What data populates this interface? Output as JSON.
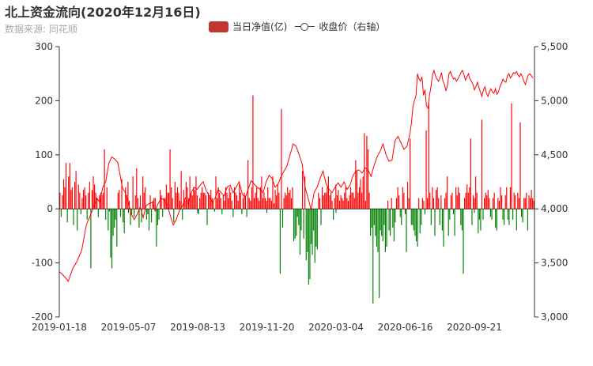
{
  "header": {
    "title": "北上资金流向(2020年12月16日)",
    "subtitle": "数据来源: 同花顺"
  },
  "chart_data": {
    "type": "bar",
    "title": "北上资金流向(2020年12月16日)",
    "subtitle": "数据来源: 同花顺",
    "legend": {
      "placement": "top-center",
      "entries": [
        "当日净值(亿)",
        "收盘价（右轴）"
      ]
    },
    "x_ticks": [
      "2019-01-18",
      "2019-05-07",
      "2019-08-13",
      "2019-11-20",
      "2020-03-04",
      "2020-06-16",
      "2020-09-21"
    ],
    "y_left": {
      "min": -200,
      "max": 300,
      "ticks": [
        "-200",
        "-100",
        "0",
        "100",
        "200",
        "300"
      ]
    },
    "y_right": {
      "min": 3000,
      "max": 5500,
      "ticks": [
        "3,000",
        "3,500",
        "4,000",
        "4,500",
        "5,000",
        "5,500"
      ]
    },
    "grid": false,
    "colors": {
      "positive": "#ff0000",
      "negative": "#008000",
      "close_line": "#ff0000",
      "legend_bar": "#c23531",
      "legend_line": "#2f4554"
    },
    "series": [
      {
        "name": "当日净值(亿)",
        "type": "bar",
        "axis": "left",
        "values": [
          30,
          -15,
          25,
          55,
          40,
          85,
          -25,
          60,
          85,
          35,
          40,
          -30,
          50,
          70,
          -40,
          45,
          30,
          -10,
          20,
          35,
          40,
          25,
          -20,
          30,
          50,
          -110,
          35,
          60,
          45,
          30,
          20,
          -15,
          25,
          30,
          25,
          30,
          110,
          -20,
          40,
          -40,
          -5,
          -90,
          -110,
          -50,
          -35,
          -20,
          -70,
          30,
          35,
          -15,
          55,
          -25,
          -45,
          40,
          25,
          50,
          15,
          -30,
          -10,
          60,
          -15,
          25,
          75,
          20,
          -35,
          25,
          -25,
          60,
          30,
          40,
          -20,
          -10,
          -40,
          25,
          -25,
          15,
          20,
          20,
          -70,
          -30,
          -20,
          35,
          25,
          -15,
          20,
          20,
          45,
          30,
          30,
          110,
          40,
          20,
          -25,
          50,
          30,
          40,
          30,
          15,
          70,
          -20,
          35,
          15,
          50,
          40,
          20,
          60,
          30,
          25,
          40,
          35,
          60,
          25,
          -10,
          20,
          30,
          40,
          30,
          30,
          25,
          -30,
          30,
          25,
          35,
          20,
          15,
          -5,
          60,
          20,
          40,
          30,
          20,
          -10,
          25,
          15,
          40,
          30,
          20,
          40,
          30,
          15,
          -15,
          40,
          30,
          25,
          15,
          45,
          30,
          -10,
          20,
          30,
          25,
          -15,
          90,
          20,
          15,
          40,
          210,
          20,
          30,
          40,
          20,
          15,
          40,
          60,
          20,
          30,
          20,
          15,
          40,
          20,
          20,
          15,
          60,
          10,
          35,
          25,
          45,
          30,
          -120,
          185,
          -35,
          20,
          30,
          25,
          40,
          30,
          35,
          20,
          40,
          -60,
          -55,
          -50,
          -15,
          -30,
          -85,
          -40,
          70,
          -55,
          60,
          -95,
          -80,
          -140,
          -130,
          -65,
          -85,
          -40,
          -100,
          -70,
          -75,
          30,
          20,
          -30,
          40,
          25,
          30,
          30,
          40,
          60,
          25,
          30,
          15,
          -20,
          20,
          45,
          25,
          35,
          15,
          25,
          20,
          15,
          30,
          40,
          20,
          15,
          25,
          40,
          30,
          30,
          20,
          90,
          70,
          30,
          40,
          55,
          30,
          60,
          140,
          15,
          135,
          110,
          30,
          -50,
          -35,
          -175,
          -30,
          -50,
          -70,
          -80,
          -165,
          -40,
          -50,
          -60,
          -30,
          -80,
          -70,
          15,
          -40,
          -50,
          20,
          -35,
          -60,
          -25,
          20,
          40,
          25,
          -15,
          -30,
          40,
          30,
          -10,
          -80,
          50,
          20,
          130,
          -30,
          -30,
          -40,
          -50,
          -60,
          -70,
          20,
          -45,
          -30,
          20,
          15,
          -10,
          145,
          20,
          195,
          30,
          -30,
          40,
          20,
          -50,
          35,
          40,
          20,
          -30,
          25,
          -40,
          -70,
          20,
          30,
          60,
          -50,
          -20,
          25,
          30,
          -10,
          -50,
          40,
          25,
          40,
          30,
          -30,
          -40,
          -120,
          20,
          30,
          45,
          30,
          40,
          130,
          -30,
          25,
          20,
          60,
          30,
          -45,
          -20,
          -40,
          165,
          -20,
          20,
          30,
          25,
          35,
          20,
          -15,
          -20,
          20,
          30,
          -35,
          -40,
          20,
          15,
          40,
          25,
          -20,
          -30,
          25,
          40,
          -20,
          -30,
          40,
          195,
          -20,
          30,
          25,
          -40,
          30,
          20,
          160,
          -15,
          -25,
          20,
          20,
          30,
          -40,
          25,
          20,
          35,
          20,
          15
        ]
      },
      {
        "name": "收盘价（右轴）",
        "type": "line",
        "axis": "right",
        "points": [
          [
            0,
            3420
          ],
          [
            6,
            3380
          ],
          [
            12,
            3330
          ],
          [
            18,
            3450
          ],
          [
            24,
            3520
          ],
          [
            30,
            3620
          ],
          [
            36,
            3850
          ],
          [
            42,
            3950
          ],
          [
            46,
            4020
          ],
          [
            50,
            4100
          ],
          [
            54,
            4060
          ],
          [
            58,
            4200
          ],
          [
            62,
            4250
          ],
          [
            66,
            4420
          ],
          [
            70,
            4480
          ],
          [
            74,
            4460
          ],
          [
            78,
            4430
          ],
          [
            82,
            4280
          ],
          [
            84,
            4200
          ],
          [
            88,
            4150
          ],
          [
            92,
            4060
          ],
          [
            96,
            3950
          ],
          [
            100,
            3900
          ],
          [
            104,
            3950
          ],
          [
            108,
            4020
          ],
          [
            112,
            3920
          ],
          [
            116,
            4030
          ],
          [
            120,
            4050
          ],
          [
            124,
            4060
          ],
          [
            128,
            3980
          ],
          [
            132,
            4050
          ],
          [
            136,
            4100
          ],
          [
            140,
            4080
          ],
          [
            144,
            4040
          ],
          [
            148,
            3940
          ],
          [
            152,
            3850
          ],
          [
            156,
            3900
          ],
          [
            160,
            3980
          ],
          [
            164,
            4020
          ],
          [
            168,
            4100
          ],
          [
            172,
            4050
          ],
          [
            176,
            4150
          ],
          [
            180,
            4200
          ],
          [
            184,
            4180
          ],
          [
            188,
            4220
          ],
          [
            192,
            4250
          ],
          [
            196,
            4170
          ],
          [
            200,
            4120
          ],
          [
            204,
            4060
          ],
          [
            208,
            4100
          ],
          [
            212,
            4180
          ],
          [
            216,
            4150
          ],
          [
            220,
            4120
          ],
          [
            224,
            4200
          ],
          [
            228,
            4220
          ],
          [
            232,
            4150
          ],
          [
            236,
            4200
          ],
          [
            240,
            4250
          ],
          [
            244,
            4140
          ],
          [
            248,
            4100
          ],
          [
            252,
            4180
          ],
          [
            256,
            4260
          ],
          [
            260,
            4230
          ],
          [
            264,
            4200
          ],
          [
            268,
            4180
          ],
          [
            272,
            4150
          ],
          [
            276,
            4250
          ],
          [
            280,
            4310
          ],
          [
            284,
            4280
          ],
          [
            288,
            4200
          ],
          [
            292,
            4230
          ],
          [
            296,
            4300
          ],
          [
            300,
            4350
          ],
          [
            304,
            4400
          ],
          [
            308,
            4500
          ],
          [
            312,
            4600
          ],
          [
            316,
            4580
          ],
          [
            320,
            4500
          ],
          [
            324,
            4420
          ],
          [
            328,
            4200
          ],
          [
            332,
            4100
          ],
          [
            336,
            3990
          ],
          [
            340,
            4150
          ],
          [
            344,
            4200
          ],
          [
            348,
            4280
          ],
          [
            352,
            4350
          ],
          [
            356,
            4230
          ],
          [
            360,
            4180
          ],
          [
            364,
            4150
          ],
          [
            368,
            4200
          ],
          [
            372,
            4240
          ],
          [
            376,
            4200
          ],
          [
            380,
            4250
          ],
          [
            384,
            4180
          ],
          [
            388,
            4220
          ],
          [
            392,
            4310
          ],
          [
            396,
            4350
          ],
          [
            400,
            4360
          ],
          [
            404,
            4330
          ],
          [
            408,
            4380
          ],
          [
            412,
            4360
          ],
          [
            416,
            4300
          ],
          [
            420,
            4400
          ],
          [
            424,
            4480
          ],
          [
            428,
            4530
          ],
          [
            432,
            4600
          ],
          [
            436,
            4500
          ],
          [
            440,
            4440
          ],
          [
            444,
            4450
          ],
          [
            448,
            4630
          ],
          [
            452,
            4670
          ],
          [
            456,
            4610
          ],
          [
            460,
            4550
          ],
          [
            464,
            4580
          ],
          [
            468,
            4700
          ],
          [
            470,
            4800
          ],
          [
            472,
            4950
          ],
          [
            474,
            5000
          ],
          [
            476,
            5050
          ],
          [
            478,
            5250
          ],
          [
            480,
            5200
          ],
          [
            482,
            5180
          ],
          [
            484,
            5220
          ],
          [
            486,
            5050
          ],
          [
            488,
            5100
          ],
          [
            490,
            4950
          ],
          [
            492,
            4930
          ],
          [
            494,
            5050
          ],
          [
            496,
            5130
          ],
          [
            498,
            5240
          ],
          [
            500,
            5280
          ],
          [
            502,
            5230
          ],
          [
            504,
            5200
          ],
          [
            506,
            5180
          ],
          [
            508,
            5210
          ],
          [
            510,
            5260
          ],
          [
            512,
            5180
          ],
          [
            514,
            5150
          ],
          [
            516,
            5090
          ],
          [
            518,
            5140
          ],
          [
            520,
            5250
          ],
          [
            522,
            5270
          ],
          [
            524,
            5230
          ],
          [
            526,
            5200
          ],
          [
            528,
            5210
          ],
          [
            530,
            5180
          ],
          [
            532,
            5200
          ],
          [
            534,
            5230
          ],
          [
            536,
            5260
          ],
          [
            538,
            5280
          ],
          [
            540,
            5240
          ],
          [
            542,
            5190
          ],
          [
            544,
            5220
          ],
          [
            546,
            5250
          ],
          [
            548,
            5200
          ],
          [
            550,
            5180
          ],
          [
            552,
            5150
          ],
          [
            554,
            5100
          ],
          [
            556,
            5130
          ],
          [
            558,
            5170
          ],
          [
            560,
            5120
          ],
          [
            562,
            5080
          ],
          [
            564,
            5040
          ],
          [
            566,
            5100
          ],
          [
            568,
            5130
          ],
          [
            570,
            5070
          ],
          [
            572,
            5040
          ],
          [
            574,
            5080
          ],
          [
            576,
            5110
          ],
          [
            578,
            5080
          ],
          [
            580,
            5070
          ],
          [
            582,
            5110
          ],
          [
            584,
            5060
          ],
          [
            586,
            5080
          ],
          [
            588,
            5130
          ],
          [
            590,
            5160
          ],
          [
            592,
            5200
          ],
          [
            594,
            5180
          ],
          [
            596,
            5170
          ],
          [
            598,
            5230
          ],
          [
            600,
            5250
          ],
          [
            602,
            5210
          ],
          [
            604,
            5230
          ],
          [
            606,
            5260
          ],
          [
            608,
            5250
          ],
          [
            610,
            5270
          ],
          [
            612,
            5240
          ],
          [
            614,
            5220
          ],
          [
            616,
            5250
          ],
          [
            618,
            5220
          ],
          [
            620,
            5180
          ],
          [
            622,
            5150
          ],
          [
            624,
            5200
          ],
          [
            626,
            5240
          ],
          [
            628,
            5250
          ],
          [
            630,
            5230
          ],
          [
            632,
            5210
          ]
        ]
      }
    ]
  }
}
